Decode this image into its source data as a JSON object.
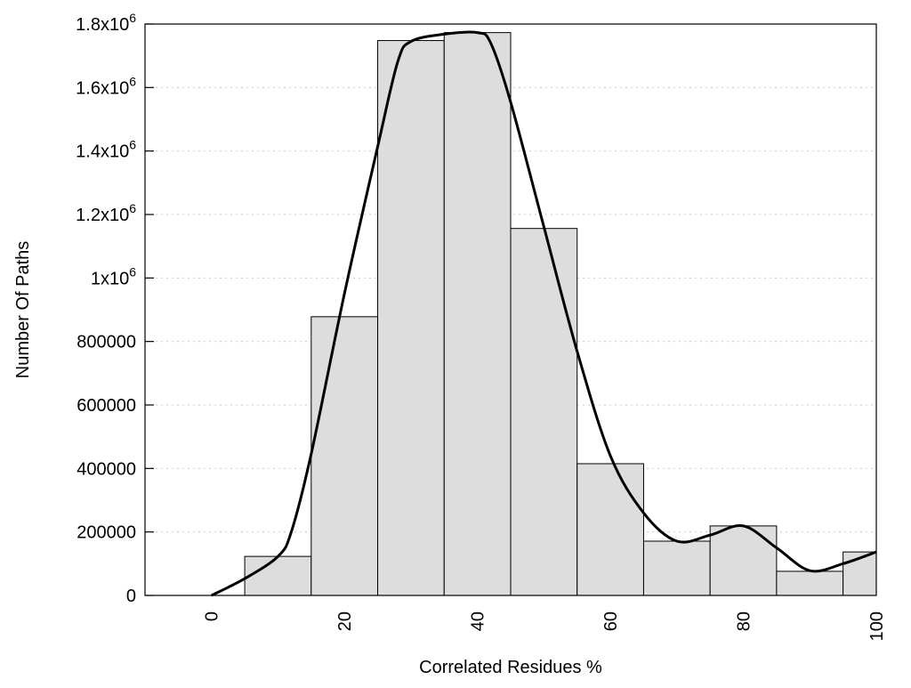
{
  "chart_data": {
    "type": "bar",
    "title": "",
    "xlabel": "Correlated Residues %",
    "ylabel": "Number Of Paths",
    "xlim": [
      -10,
      100
    ],
    "ylim": [
      0,
      1800000
    ],
    "grid": "horizontal dotted",
    "bar_width": 10,
    "bar_color": "#dddddd",
    "x_ticks": [
      {
        "value": 0,
        "label": "0"
      },
      {
        "value": 20,
        "label": "20"
      },
      {
        "value": 40,
        "label": "40"
      },
      {
        "value": 60,
        "label": "60"
      },
      {
        "value": 80,
        "label": "80"
      },
      {
        "value": 100,
        "label": "100"
      }
    ],
    "y_ticks": [
      {
        "value": 0,
        "label": "0",
        "exp": ""
      },
      {
        "value": 200000,
        "label": "200000",
        "exp": ""
      },
      {
        "value": 400000,
        "label": "400000",
        "exp": ""
      },
      {
        "value": 600000,
        "label": "600000",
        "exp": ""
      },
      {
        "value": 800000,
        "label": "800000",
        "exp": ""
      },
      {
        "value": 1000000,
        "label": "1x10",
        "exp": "6"
      },
      {
        "value": 1200000,
        "label": "1.2x10",
        "exp": "6"
      },
      {
        "value": 1400000,
        "label": "1.4x10",
        "exp": "6"
      },
      {
        "value": 1600000,
        "label": "1.6x10",
        "exp": "6"
      },
      {
        "value": 1800000,
        "label": "1.8x10",
        "exp": "6"
      }
    ],
    "bars": {
      "x": [
        10,
        20,
        30,
        40,
        50,
        60,
        70,
        80,
        90,
        100
      ],
      "values": [
        123000,
        878000,
        1748000,
        1773000,
        1156000,
        415000,
        171000,
        219000,
        76000,
        137000
      ]
    },
    "series": [
      {
        "name": "density curve",
        "type": "line",
        "color": "#000000",
        "x": [
          0,
          5,
          10,
          12,
          15,
          20,
          25,
          28,
          30,
          35,
          40,
          42,
          45,
          50,
          55,
          60,
          65,
          70,
          75,
          80,
          85,
          90,
          95,
          100
        ],
        "y": [
          0,
          53000,
          123000,
          200000,
          446000,
          951000,
          1414000,
          1680000,
          1745000,
          1768000,
          1773000,
          1740000,
          1554000,
          1161000,
          769000,
          440000,
          260000,
          171000,
          190000,
          219000,
          150000,
          78000,
          100000,
          137000
        ]
      }
    ]
  }
}
